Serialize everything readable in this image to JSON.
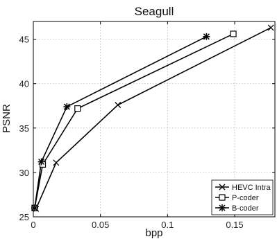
{
  "chart_data": {
    "type": "line",
    "title": "Seagull",
    "xlabel": "bpp",
    "ylabel": "PSNR",
    "xlim": [
      0,
      0.18
    ],
    "ylim": [
      25,
      47
    ],
    "xticks": [
      0,
      0.05,
      0.1,
      0.15
    ],
    "xtick_labels": [
      "0",
      "0.05",
      "0.1",
      "0.15"
    ],
    "yticks": [
      25,
      30,
      35,
      40,
      45
    ],
    "ytick_labels": [
      "25",
      "30",
      "35",
      "40",
      "45"
    ],
    "grid": true,
    "legend_position": "bottom-right",
    "series": [
      {
        "name": "HEVC Intra",
        "marker": "x",
        "color": "#000000",
        "x": [
          0.002,
          0.017,
          0.063,
          0.177
        ],
        "y": [
          25.9,
          31.1,
          37.6,
          46.3
        ]
      },
      {
        "name": "P-coder",
        "marker": "square",
        "color": "#000000",
        "x": [
          0.001,
          0.007,
          0.033,
          0.149
        ],
        "y": [
          26.0,
          30.9,
          37.2,
          45.6
        ]
      },
      {
        "name": "B-coder",
        "marker": "star",
        "color": "#000000",
        "x": [
          0.001,
          0.006,
          0.025,
          0.129
        ],
        "y": [
          26.0,
          31.2,
          37.4,
          45.3
        ]
      }
    ]
  }
}
